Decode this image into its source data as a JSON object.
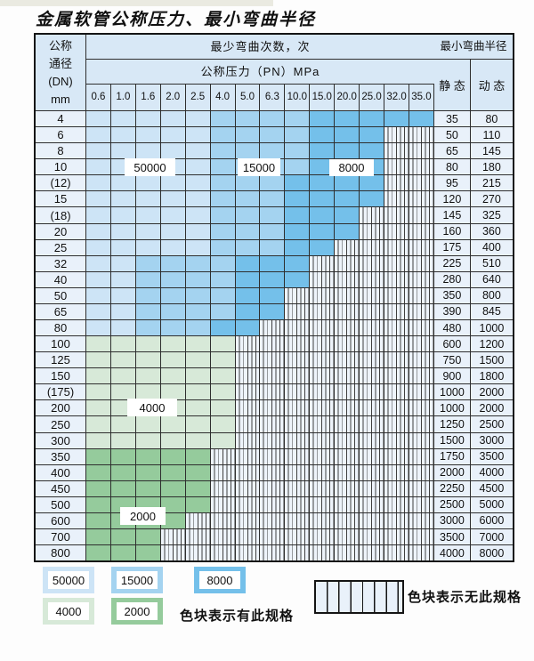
{
  "title": "金属软管公称压力、最小弯曲半径",
  "colors": {
    "blue_light": "#cde4f6",
    "blue_mid": "#a4d3f0",
    "blue_dark": "#74c0ea",
    "green_light": "#d7e9d8",
    "green_dark": "#95cb9c",
    "none_bg": "#eef4fb",
    "grid": "#2e2e2e",
    "header_bg": "#d8e8f6",
    "label_bg": "#e9f1fa"
  },
  "table": {
    "header": {
      "dn_lines": [
        "公称",
        "通径",
        "(DN)",
        "mm"
      ],
      "bend_cycles_label": "最少弯曲次数，次",
      "pressure_label": "公称压力（PN）MPa",
      "pressure_values": [
        "0.6",
        "1.0",
        "1.6",
        "2.0",
        "2.5",
        "4.0",
        "5.0",
        "6.3",
        "10.0",
        "15.0",
        "20.0",
        "25.0",
        "32.0",
        "35.0"
      ],
      "radius_label": "最小弯曲半径",
      "static_label": "静 态",
      "dynamic_label": "动 态"
    },
    "zone_codes": {
      "L": "50000",
      "M": "15000",
      "D": "8000",
      "F": "4000",
      "T": "2000",
      "X": "no-spec"
    },
    "zone_labels": [
      "50000",
      "15000",
      "8000",
      "4000",
      "2000"
    ],
    "rows": [
      {
        "dn": "4",
        "zones": "LLLLLMMMMDDDDD",
        "static": "35",
        "dynamic": "80"
      },
      {
        "dn": "6",
        "zones": "LLLLLMMMMDDDXX",
        "static": "50",
        "dynamic": "110"
      },
      {
        "dn": "8",
        "zones": "LLLLLMMMMDDDXX",
        "static": "65",
        "dynamic": "145"
      },
      {
        "dn": "10",
        "zones": "LLLLLMMMMDDDXX",
        "static": "80",
        "dynamic": "180"
      },
      {
        "dn": "(12)",
        "zones": "LLLLLMMMDDDDXX",
        "static": "95",
        "dynamic": "215"
      },
      {
        "dn": "15",
        "zones": "LLLLLMMMDDDDXX",
        "static": "120",
        "dynamic": "270"
      },
      {
        "dn": "(18)",
        "zones": "LLLLLMMMDDDXXX",
        "static": "145",
        "dynamic": "325"
      },
      {
        "dn": "20",
        "zones": "LLLLLMMMDDDXXX",
        "static": "160",
        "dynamic": "360"
      },
      {
        "dn": "25",
        "zones": "LLLLLMMMDDXXXX",
        "static": "175",
        "dynamic": "400"
      },
      {
        "dn": "32",
        "zones": "LLMMMMDDDXXXXX",
        "static": "225",
        "dynamic": "510"
      },
      {
        "dn": "40",
        "zones": "LLMMMMDDDXXXXX",
        "static": "280",
        "dynamic": "640"
      },
      {
        "dn": "50",
        "zones": "LLMMMMDDXXXXXX",
        "static": "350",
        "dynamic": "800"
      },
      {
        "dn": "65",
        "zones": "LLMMMMDDXXXXXX",
        "static": "390",
        "dynamic": "845"
      },
      {
        "dn": "80",
        "zones": "LLMMMDDXXXXXXX",
        "static": "480",
        "dynamic": "1000"
      },
      {
        "dn": "100",
        "zones": "FFFFFFXXXXXXXX",
        "static": "600",
        "dynamic": "1200"
      },
      {
        "dn": "125",
        "zones": "FFFFFFXXXXXXXX",
        "static": "750",
        "dynamic": "1500"
      },
      {
        "dn": "150",
        "zones": "FFFFFFXXXXXXXX",
        "static": "900",
        "dynamic": "1800"
      },
      {
        "dn": "(175)",
        "zones": "FFFFFFXXXXXXXX",
        "static": "1000",
        "dynamic": "2000"
      },
      {
        "dn": "200",
        "zones": "FFFFFFXXXXXXXX",
        "static": "1000",
        "dynamic": "2000"
      },
      {
        "dn": "250",
        "zones": "FFFFFFXXXXXXXX",
        "static": "1250",
        "dynamic": "2500"
      },
      {
        "dn": "300",
        "zones": "FFFFFFXXXXXXXX",
        "static": "1500",
        "dynamic": "3000"
      },
      {
        "dn": "350",
        "zones": "TTTTTXXXXXXXXX",
        "static": "1750",
        "dynamic": "3500"
      },
      {
        "dn": "400",
        "zones": "TTTTTXXXXXXXXX",
        "static": "2000",
        "dynamic": "4000"
      },
      {
        "dn": "450",
        "zones": "TTTTTXXXXXXXXX",
        "static": "2250",
        "dynamic": "4500"
      },
      {
        "dn": "500",
        "zones": "TTTTTXXXXXXXXX",
        "static": "2500",
        "dynamic": "5000"
      },
      {
        "dn": "600",
        "zones": "TTTTXXXXXXXXXX",
        "static": "3000",
        "dynamic": "6000"
      },
      {
        "dn": "700",
        "zones": "TTTXXXXXXXXXXX",
        "static": "3500",
        "dynamic": "7000"
      },
      {
        "dn": "800",
        "zones": "TTTXXXXXXXXXXX",
        "static": "4000",
        "dynamic": "8000"
      }
    ]
  },
  "legend": {
    "items": [
      {
        "label": "50000",
        "color_key": "blue_light"
      },
      {
        "label": "15000",
        "color_key": "blue_mid"
      },
      {
        "label": "8000",
        "color_key": "blue_dark"
      },
      {
        "label": "4000",
        "color_key": "green_light"
      },
      {
        "label": "2000",
        "color_key": "green_dark"
      }
    ],
    "has_spec_note": "色块表示有此规格",
    "no_spec_note": "色块表示无此规格"
  }
}
